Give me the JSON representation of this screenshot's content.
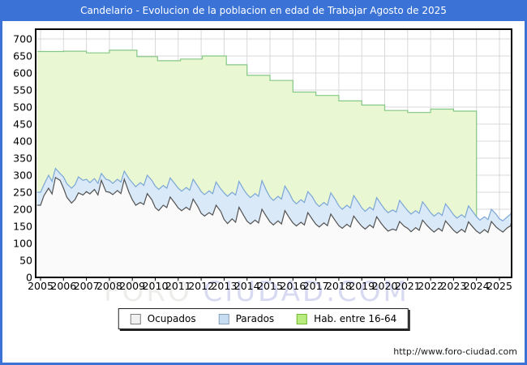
{
  "window": {
    "title": "Candelario - Evolucion de la poblacion en edad de Trabajar Agosto de 2025"
  },
  "footer": {
    "url": "http://www.foro-ciudad.com"
  },
  "watermark": {
    "part1": "FORO ",
    "part2": "CIUDAD.COM"
  },
  "colors": {
    "titlebar_bg": "#3b72d6",
    "frame_border": "#3b72d6",
    "plot_border": "#000000",
    "grid": "#d9d9d9",
    "axis_text": "#000000",
    "watermark_part1": "#ededeb",
    "watermark_part2": "#d8daf2"
  },
  "chart_data": {
    "type": "area",
    "title": "Candelario - Evolucion de la poblacion en edad de Trabajar Agosto de 2025",
    "xlabel": "",
    "ylabel": "",
    "x_ticks": [
      2005,
      2006,
      2007,
      2008,
      2009,
      2010,
      2011,
      2012,
      2013,
      2014,
      2015,
      2016,
      2017,
      2018,
      2019,
      2020,
      2021,
      2022,
      2023,
      2024,
      2025
    ],
    "y_ticks": [
      0,
      50,
      100,
      150,
      200,
      250,
      300,
      350,
      400,
      450,
      500,
      550,
      600,
      650,
      700
    ],
    "ylim": [
      0,
      729
    ],
    "xlim": [
      2004.85,
      2025.52
    ],
    "grid": true,
    "legend_position": "bottom",
    "sample_offsets": [
      0,
      0.15,
      0.35,
      0.5,
      0.65,
      0.85
    ],
    "start_year": 2005,
    "series": [
      {
        "name": "Ocupados",
        "kind": "area",
        "z": 2,
        "fill": "#fafafa",
        "stroke": "#525252",
        "legend_fill": "#f0f0f0",
        "legend_border": "#7f7f7f",
        "values_by_year": [
          [
            212,
            240,
            262,
            245,
            293,
            285
          ],
          [
            262,
            235,
            218,
            228,
            248,
            242
          ],
          [
            252,
            245,
            258,
            242,
            285,
            252
          ],
          [
            250,
            243,
            255,
            246,
            288,
            250
          ],
          [
            228,
            212,
            220,
            214,
            246,
            228
          ],
          [
            205,
            196,
            212,
            205,
            236,
            218
          ],
          [
            204,
            196,
            206,
            198,
            230,
            208
          ],
          [
            188,
            180,
            190,
            183,
            212,
            194
          ],
          [
            170,
            158,
            172,
            162,
            206,
            182
          ],
          [
            165,
            157,
            168,
            160,
            200,
            178
          ],
          [
            163,
            154,
            166,
            157,
            196,
            174
          ],
          [
            160,
            151,
            162,
            154,
            190,
            170
          ],
          [
            156,
            148,
            160,
            152,
            186,
            166
          ],
          [
            152,
            144,
            156,
            148,
            180,
            162
          ],
          [
            150,
            142,
            154,
            146,
            178,
            158
          ],
          [
            146,
            136,
            142,
            138,
            164,
            150
          ],
          [
            144,
            134,
            146,
            138,
            168,
            152
          ],
          [
            142,
            133,
            144,
            136,
            166,
            150
          ],
          [
            138,
            130,
            141,
            133,
            163,
            147
          ],
          [
            136,
            129,
            140,
            132,
            164,
            148
          ],
          [
            140,
            133,
            146,
            152
          ]
        ],
        "extra_points": [
          [
            2025.5,
            158
          ]
        ]
      },
      {
        "name": "Parados",
        "kind": "area",
        "z": 1,
        "fill": "#d9e9f8",
        "stroke": "#7ba6d6",
        "legend_fill": "#c6ddf2",
        "legend_border": "#8aa0b4",
        "values_by_year": [
          [
            250,
            272,
            300,
            282,
            320,
            305
          ],
          [
            295,
            275,
            262,
            272,
            295,
            285
          ],
          [
            288,
            278,
            290,
            276,
            305,
            288
          ],
          [
            285,
            276,
            288,
            280,
            312,
            290
          ],
          [
            278,
            266,
            278,
            270,
            300,
            285
          ],
          [
            268,
            258,
            270,
            262,
            292,
            275
          ],
          [
            262,
            253,
            264,
            256,
            288,
            268
          ],
          [
            252,
            243,
            254,
            246,
            280,
            260
          ],
          [
            248,
            238,
            250,
            242,
            282,
            258
          ],
          [
            244,
            234,
            246,
            238,
            284,
            254
          ],
          [
            236,
            226,
            238,
            230,
            268,
            246
          ],
          [
            226,
            216,
            228,
            220,
            252,
            236
          ],
          [
            218,
            208,
            220,
            212,
            248,
            228
          ],
          [
            210,
            200,
            212,
            204,
            240,
            220
          ],
          [
            204,
            194,
            206,
            198,
            234,
            214
          ],
          [
            200,
            190,
            198,
            192,
            226,
            208
          ],
          [
            196,
            186,
            196,
            188,
            222,
            204
          ],
          [
            190,
            180,
            190,
            182,
            216,
            198
          ],
          [
            184,
            174,
            184,
            176,
            210,
            192
          ],
          [
            178,
            168,
            178,
            170,
            200,
            186
          ],
          [
            172,
            166,
            178,
            186
          ]
        ],
        "extra_points": [
          [
            2025.5,
            190
          ]
        ]
      },
      {
        "name": "Hab. entre 16-64",
        "kind": "area-step",
        "z": 0,
        "fill": "#e9f8d2",
        "stroke": "#85c785",
        "legend_fill": "#b9ec7f",
        "legend_border": "#74b832",
        "steps": [
          [
            2005,
            663
          ],
          [
            2006,
            664
          ],
          [
            2007,
            659
          ],
          [
            2008,
            667
          ],
          [
            2009.2,
            648
          ],
          [
            2010.1,
            636
          ],
          [
            2011.1,
            641
          ],
          [
            2012.05,
            650
          ],
          [
            2013.1,
            624
          ],
          [
            2014,
            593
          ],
          [
            2015,
            578
          ],
          [
            2016,
            544
          ],
          [
            2017,
            534
          ],
          [
            2018,
            518
          ],
          [
            2019,
            506
          ],
          [
            2020,
            490
          ],
          [
            2021,
            484
          ],
          [
            2022,
            494
          ],
          [
            2023,
            488
          ],
          [
            2024,
            0
          ]
        ]
      }
    ]
  }
}
